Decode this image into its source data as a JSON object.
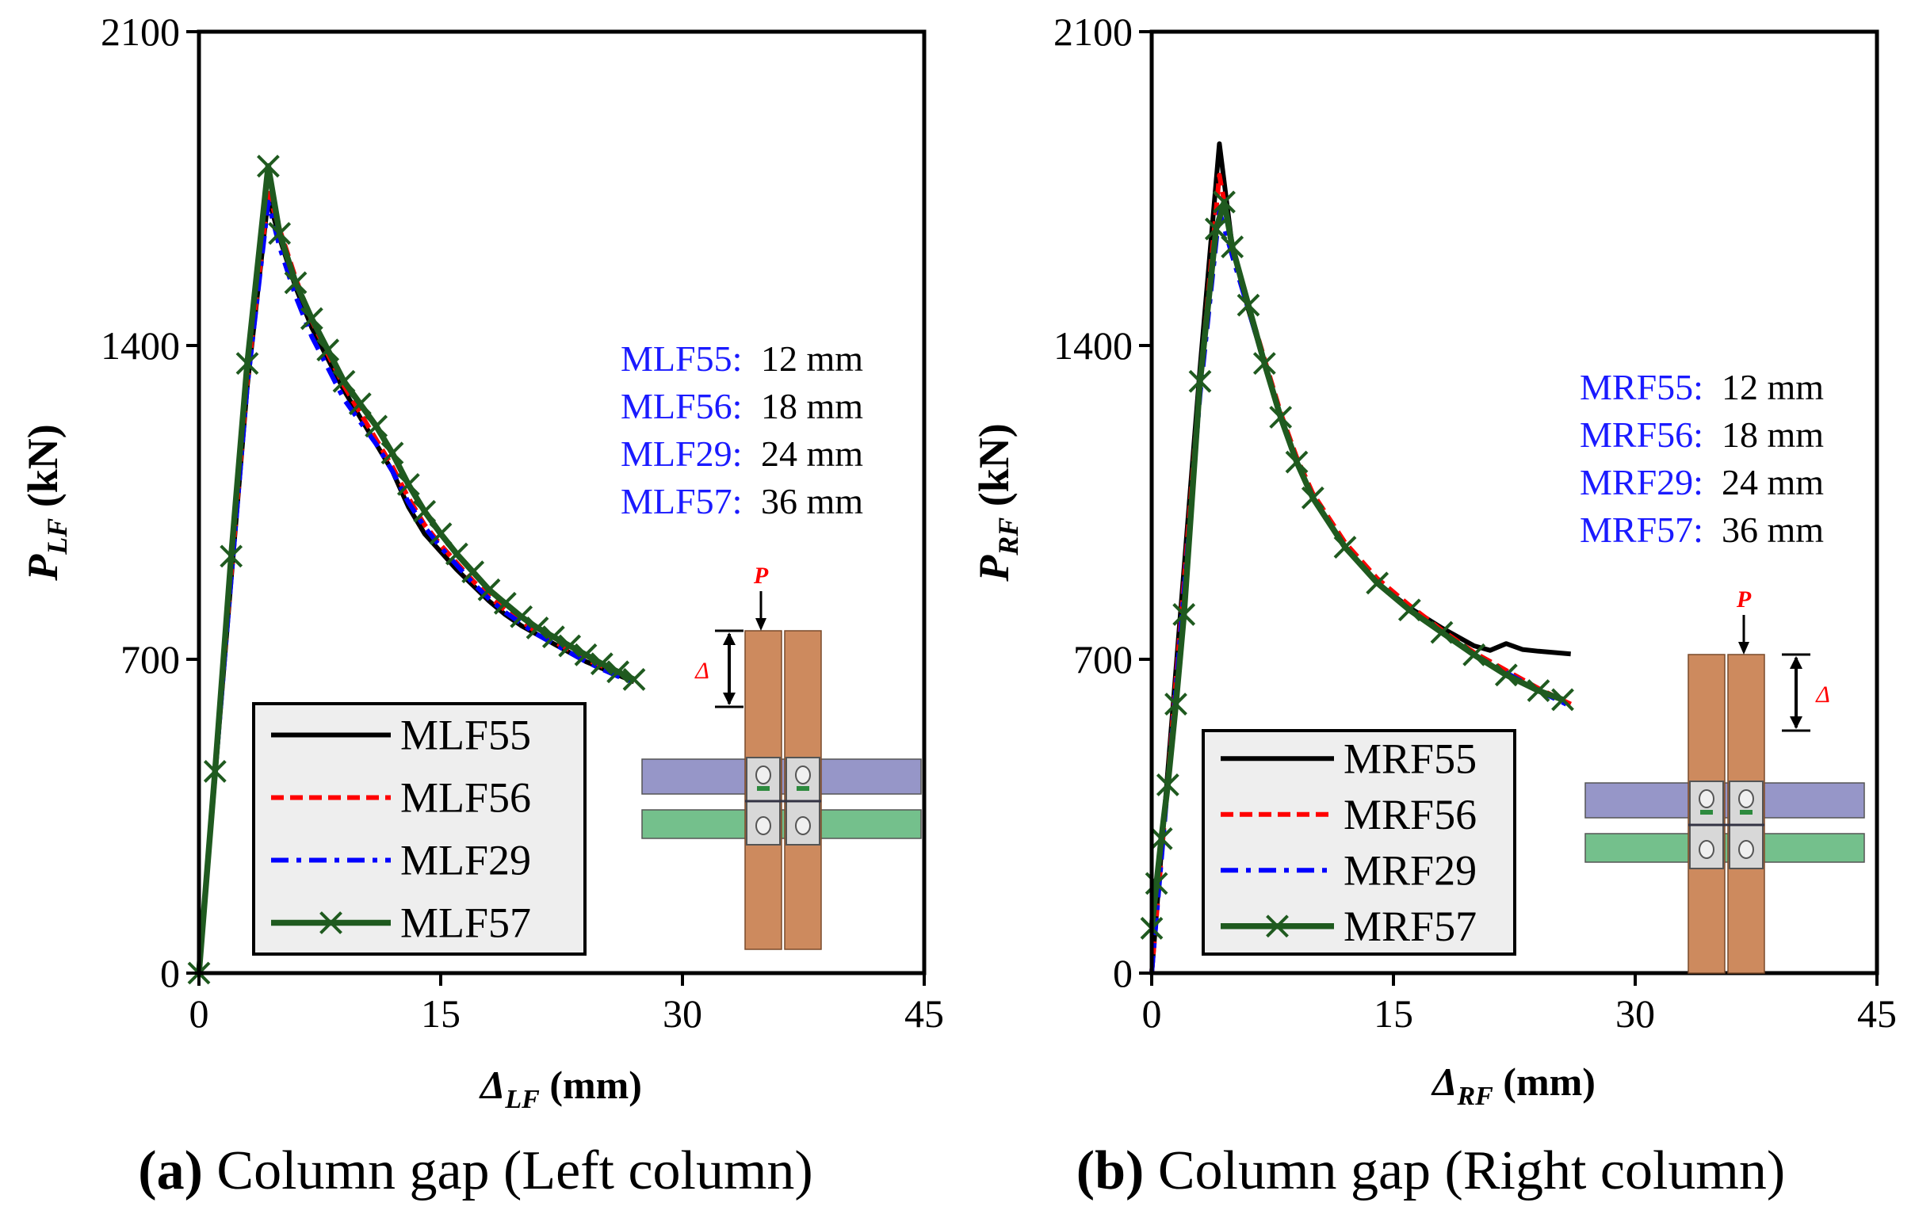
{
  "colors": {
    "MLF55": "#000000",
    "MLF56": "#ff0000",
    "MLF29": "#0000ff",
    "MLF57": "#1f5a1f",
    "annotation_label": "#1a1aff",
    "load_arrow_label": "#ff0000",
    "column": "#cd8a5e",
    "beam_top": "#9696c8",
    "beam_bottom": "#74c08c",
    "connector": "#d8d8d8",
    "legend_bg": "#eeeeee"
  },
  "chart_data": [
    {
      "type": "line",
      "caption_prefix": "(a)",
      "caption_text": "Column gap (Left column)",
      "ylabel_main": "P",
      "ylabel_sub": "LF",
      "ylabel_unit": "(kN)",
      "xlabel_main": "Δ",
      "xlabel_sub": "LF",
      "xlabel_unit": "(mm)",
      "xlim": [
        0,
        45
      ],
      "ylim": [
        0,
        2100
      ],
      "xticks": [
        "0",
        "15",
        "30",
        "45"
      ],
      "xtick_values": [
        0,
        15,
        30,
        45
      ],
      "yticks": [
        "0",
        "700",
        "1400",
        "2100"
      ],
      "ytick_values": [
        0,
        700,
        1400,
        2100
      ],
      "legend_location": "bottom-left",
      "inset_arrow_label": "P",
      "inset_disp_label": "Δ",
      "inset_side": "left",
      "annotations": [
        {
          "label": "MLF55:",
          "value": "12 mm"
        },
        {
          "label": "MLF56:",
          "value": " 18 mm"
        },
        {
          "label": "MLF29:",
          "value": " 24 mm"
        },
        {
          "label": "MLF57:",
          "value": " 36 mm"
        }
      ],
      "series": [
        {
          "name": "MLF55",
          "style": "solid",
          "x": [
            0,
            1,
            2,
            3,
            4.3,
            5,
            6,
            7,
            8,
            9,
            10,
            11,
            12,
            13,
            14,
            15,
            16,
            17,
            18,
            19,
            20,
            21,
            22,
            23,
            24,
            25,
            26,
            27
          ],
          "y": [
            0,
            440,
            880,
            1310,
            1730,
            1640,
            1530,
            1440,
            1370,
            1300,
            1240,
            1180,
            1120,
            1040,
            980,
            940,
            900,
            865,
            830,
            800,
            775,
            755,
            735,
            715,
            695,
            680,
            665,
            650
          ]
        },
        {
          "name": "MLF56",
          "style": "dashed",
          "x": [
            0,
            1,
            2,
            3,
            4.3,
            5,
            6,
            7,
            8,
            9,
            10,
            11,
            12,
            13,
            14,
            15,
            16,
            17,
            18,
            19,
            20,
            21,
            22,
            23,
            24,
            25,
            26,
            27
          ],
          "y": [
            0,
            450,
            890,
            1320,
            1740,
            1660,
            1550,
            1455,
            1380,
            1310,
            1250,
            1190,
            1130,
            1060,
            1000,
            955,
            915,
            875,
            840,
            810,
            785,
            760,
            740,
            720,
            700,
            685,
            668,
            652
          ]
        },
        {
          "name": "MLF29",
          "style": "dashdot",
          "x": [
            0,
            1,
            2,
            3,
            4.3,
            5,
            6,
            7,
            8,
            9,
            10,
            11,
            12,
            13,
            14,
            15,
            16,
            17,
            18,
            19,
            20,
            21,
            22,
            23,
            24,
            25,
            26,
            27
          ],
          "y": [
            0,
            440,
            880,
            1310,
            1720,
            1620,
            1510,
            1420,
            1350,
            1280,
            1230,
            1180,
            1120,
            1050,
            995,
            950,
            910,
            870,
            835,
            805,
            780,
            755,
            735,
            715,
            695,
            678,
            662,
            648
          ]
        },
        {
          "name": "MLF57",
          "style": "solid-x",
          "x": [
            0,
            1,
            2,
            3,
            4.3,
            5,
            6,
            7,
            8,
            9,
            10,
            11,
            12,
            13,
            14,
            15,
            16,
            17,
            18,
            19,
            20,
            21,
            22,
            23,
            24,
            25,
            26,
            27
          ],
          "y": [
            0,
            450,
            930,
            1360,
            1800,
            1650,
            1540,
            1460,
            1390,
            1320,
            1270,
            1220,
            1160,
            1090,
            1030,
            980,
            935,
            895,
            855,
            825,
            795,
            770,
            750,
            730,
            710,
            690,
            672,
            655
          ]
        }
      ]
    },
    {
      "type": "line",
      "caption_prefix": "(b)",
      "caption_text": "Column gap (Right column)",
      "ylabel_main": "P",
      "ylabel_sub": "RF",
      "ylabel_unit": "(kN)",
      "xlabel_main": "Δ",
      "xlabel_sub": "RF",
      "xlabel_unit": "(mm)",
      "xlim": [
        0,
        45
      ],
      "ylim": [
        0,
        2100
      ],
      "xticks": [
        "0",
        "15",
        "30",
        "45"
      ],
      "xtick_values": [
        0,
        15,
        30,
        45
      ],
      "yticks": [
        "0",
        "700",
        "1400",
        "2100"
      ],
      "ytick_values": [
        0,
        700,
        1400,
        2100
      ],
      "legend_location": "bottom-left",
      "inset_arrow_label": "P",
      "inset_disp_label": "Δ",
      "inset_side": "right",
      "annotations": [
        {
          "label": "MRF55:",
          "value": "12 mm"
        },
        {
          "label": "MRF56:",
          "value": " 18 mm"
        },
        {
          "label": "MRF29:",
          "value": " 24 mm"
        },
        {
          "label": "MRF57:",
          "value": " 36 mm"
        }
      ],
      "series": [
        {
          "name": "MRF55",
          "style": "solid",
          "x": [
            0,
            1,
            2,
            3,
            4.2,
            5,
            6,
            7,
            8,
            9,
            10,
            12,
            14,
            16,
            18,
            20,
            21,
            22,
            23,
            24,
            26
          ],
          "y": [
            0,
            450,
            900,
            1350,
            1850,
            1620,
            1480,
            1360,
            1240,
            1140,
            1060,
            950,
            870,
            815,
            770,
            730,
            720,
            735,
            722,
            718,
            712
          ]
        },
        {
          "name": "MRF56",
          "style": "dashed",
          "x": [
            0,
            1,
            2,
            3,
            4.2,
            5,
            6,
            7,
            8,
            9,
            10,
            12,
            14,
            16,
            18,
            20,
            22,
            24,
            26
          ],
          "y": [
            0,
            430,
            870,
            1320,
            1780,
            1620,
            1490,
            1370,
            1250,
            1150,
            1070,
            960,
            880,
            820,
            765,
            715,
            675,
            635,
            600
          ]
        },
        {
          "name": "MRF29",
          "style": "dashdot",
          "x": [
            0,
            1,
            2,
            3,
            4.2,
            5,
            6,
            7,
            8,
            9,
            10,
            12,
            14,
            16,
            18,
            20,
            22,
            24,
            26
          ],
          "y": [
            0,
            420,
            850,
            1290,
            1700,
            1600,
            1480,
            1360,
            1240,
            1140,
            1060,
            950,
            870,
            810,
            760,
            710,
            670,
            630,
            595
          ]
        },
        {
          "name": "MRF57",
          "style": "solid-x",
          "x": [
            0,
            0.3,
            0.6,
            1,
            1.5,
            2,
            3,
            4,
            4.5,
            5,
            6,
            7,
            8,
            9,
            10,
            12,
            14,
            16,
            18,
            20,
            22,
            24,
            25.5
          ],
          "y": [
            100,
            200,
            300,
            420,
            600,
            800,
            1320,
            1660,
            1720,
            1620,
            1490,
            1360,
            1240,
            1140,
            1060,
            950,
            870,
            810,
            760,
            710,
            665,
            630,
            610
          ]
        }
      ]
    }
  ]
}
